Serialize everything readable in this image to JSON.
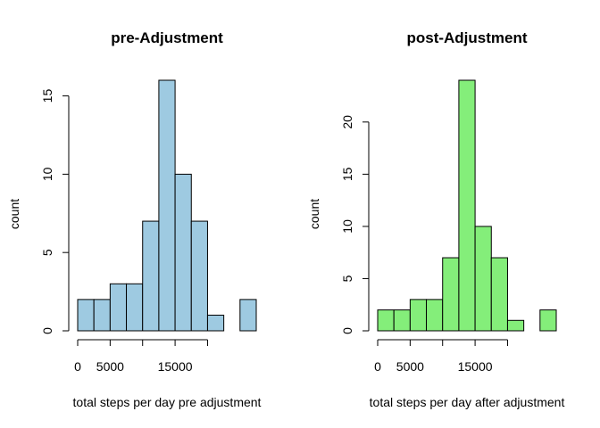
{
  "chart_data": [
    {
      "type": "bar",
      "title": "pre-Adjustment",
      "xlabel": "total steps per day pre adjustment",
      "ylabel": "count",
      "color": "#9ecae1",
      "bin_width": 2500,
      "bin_start": 0,
      "values": [
        2,
        2,
        3,
        3,
        7,
        16,
        10,
        7,
        1,
        0,
        2
      ],
      "xlim": [
        0,
        22500
      ],
      "ylim": [
        0,
        16
      ],
      "x_ticks": [
        0,
        5000,
        10000,
        15000,
        20000
      ],
      "x_tick_labels": [
        "0",
        "5000",
        "",
        "15000",
        ""
      ],
      "y_ticks": [
        0,
        5,
        10,
        15
      ],
      "y_tick_labels": [
        "0",
        "5",
        "10",
        "15"
      ]
    },
    {
      "type": "bar",
      "title": "post-Adjustment",
      "xlabel": "total steps per day after adjustment",
      "ylabel": "count",
      "color": "#84ee7a",
      "bin_width": 2500,
      "bin_start": 0,
      "values": [
        2,
        2,
        3,
        3,
        7,
        24,
        10,
        7,
        1,
        0,
        2
      ],
      "xlim": [
        0,
        22500
      ],
      "ylim": [
        0,
        24
      ],
      "x_ticks": [
        0,
        5000,
        10000,
        15000,
        20000
      ],
      "x_tick_labels": [
        "0",
        "5000",
        "",
        "15000",
        ""
      ],
      "y_ticks": [
        0,
        5,
        10,
        15,
        20
      ],
      "y_tick_labels": [
        "0",
        "5",
        "10",
        "15",
        "20"
      ]
    }
  ]
}
